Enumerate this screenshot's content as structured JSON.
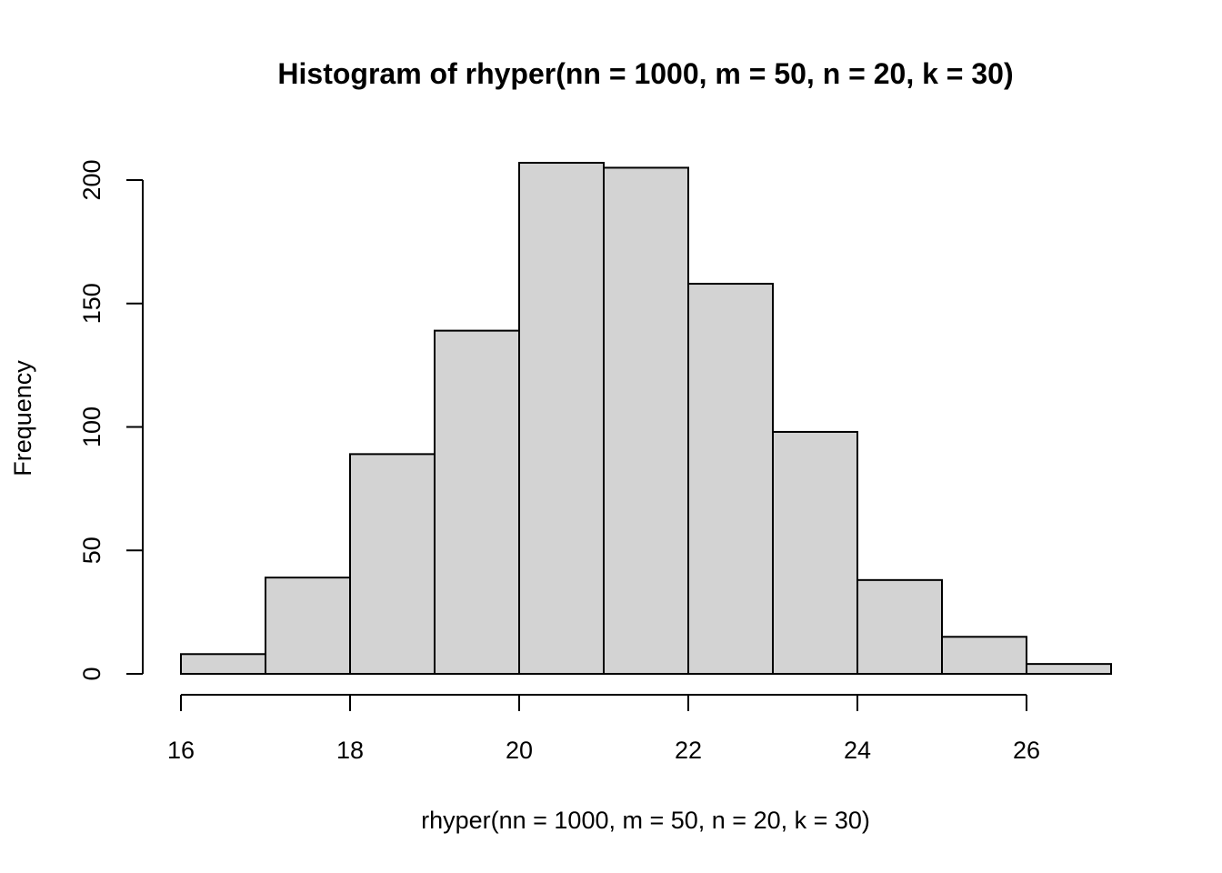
{
  "chart_data": {
    "type": "bar",
    "subtype": "histogram",
    "title": "Histogram of rhyper(nn = 1000, m = 50, n = 20, k = 30)",
    "xlabel": "rhyper(nn = 1000, m = 50, n = 20, k = 30)",
    "ylabel": "Frequency",
    "bins": [
      {
        "from": 16,
        "to": 17,
        "count": 8
      },
      {
        "from": 17,
        "to": 18,
        "count": 39
      },
      {
        "from": 18,
        "to": 19,
        "count": 89
      },
      {
        "from": 19,
        "to": 20,
        "count": 139
      },
      {
        "from": 20,
        "to": 21,
        "count": 207
      },
      {
        "from": 21,
        "to": 22,
        "count": 205
      },
      {
        "from": 22,
        "to": 23,
        "count": 158
      },
      {
        "from": 23,
        "to": 24,
        "count": 98
      },
      {
        "from": 24,
        "to": 25,
        "count": 38
      },
      {
        "from": 25,
        "to": 26,
        "count": 15
      },
      {
        "from": 26,
        "to": 27,
        "count": 4
      }
    ],
    "xlim": [
      16,
      27
    ],
    "ylim": [
      0,
      207
    ],
    "x_ticks": [
      16,
      18,
      20,
      22,
      24,
      26
    ],
    "y_ticks": [
      0,
      50,
      100,
      150,
      200
    ],
    "bar_color": "#d3d3d3",
    "border_color": "#000000",
    "grid": false,
    "legend": "none"
  }
}
